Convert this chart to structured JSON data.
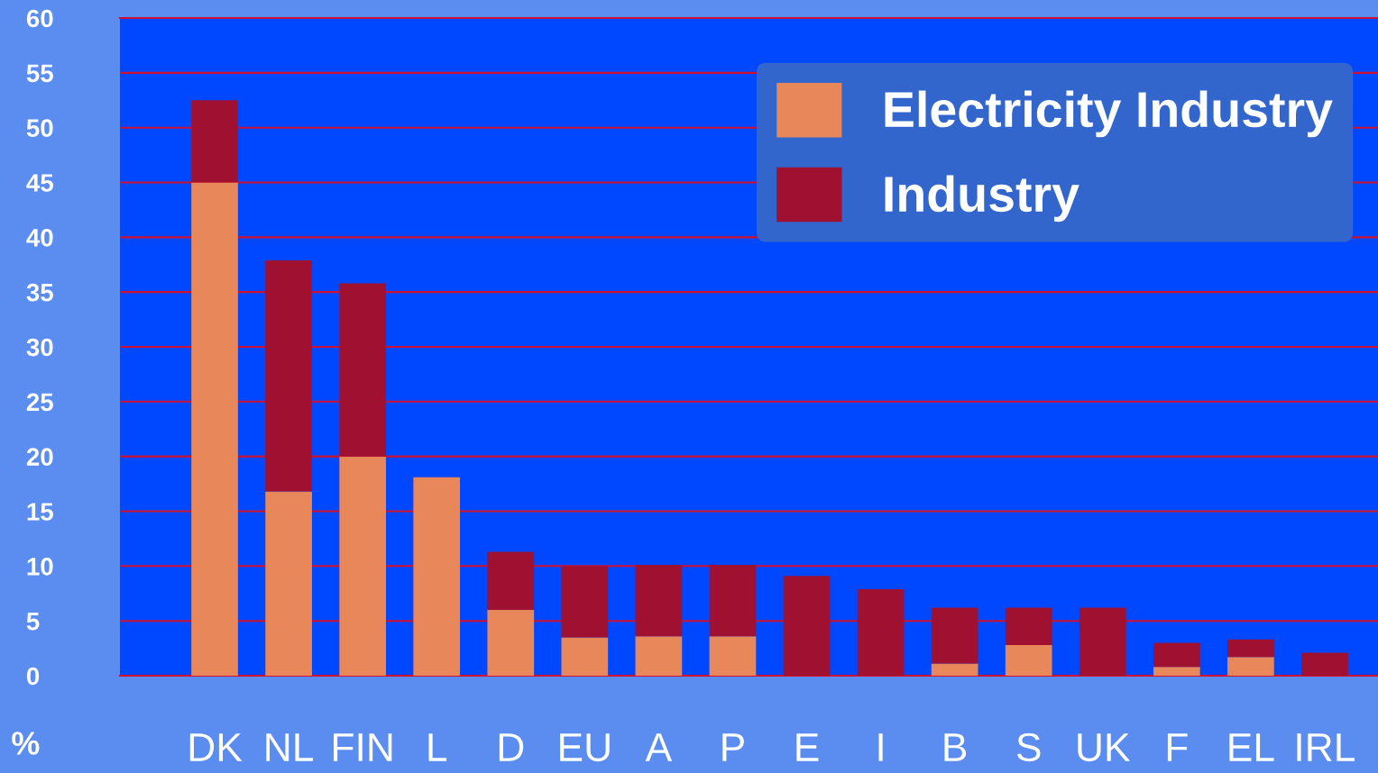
{
  "chart_data": {
    "type": "bar",
    "stacked": true,
    "ylabel": "%",
    "categories": [
      "DK",
      "NL",
      "FIN",
      "L",
      "D",
      "EU",
      "A",
      "P",
      "E",
      "I",
      "B",
      "S",
      "UK",
      "F",
      "EL",
      "IRL"
    ],
    "series": [
      {
        "name": "Electricity Industry",
        "color": "#e8875a",
        "values": [
          45.0,
          16.8,
          20.0,
          18.1,
          6.0,
          3.5,
          3.6,
          3.6,
          0,
          0,
          1.1,
          2.8,
          0,
          0.8,
          1.7,
          0
        ]
      },
      {
        "name": "Industry",
        "color": "#a01030",
        "values": [
          7.5,
          21.1,
          15.8,
          0,
          5.3,
          6.5,
          6.5,
          6.5,
          9.1,
          7.9,
          5.1,
          3.4,
          6.2,
          2.2,
          1.6,
          2.1
        ]
      }
    ],
    "ylim": [
      0,
      60
    ],
    "yticks": [
      0,
      5,
      10,
      15,
      20,
      25,
      30,
      35,
      40,
      45,
      50,
      55,
      60
    ],
    "grid": "y",
    "legend": "top right"
  }
}
